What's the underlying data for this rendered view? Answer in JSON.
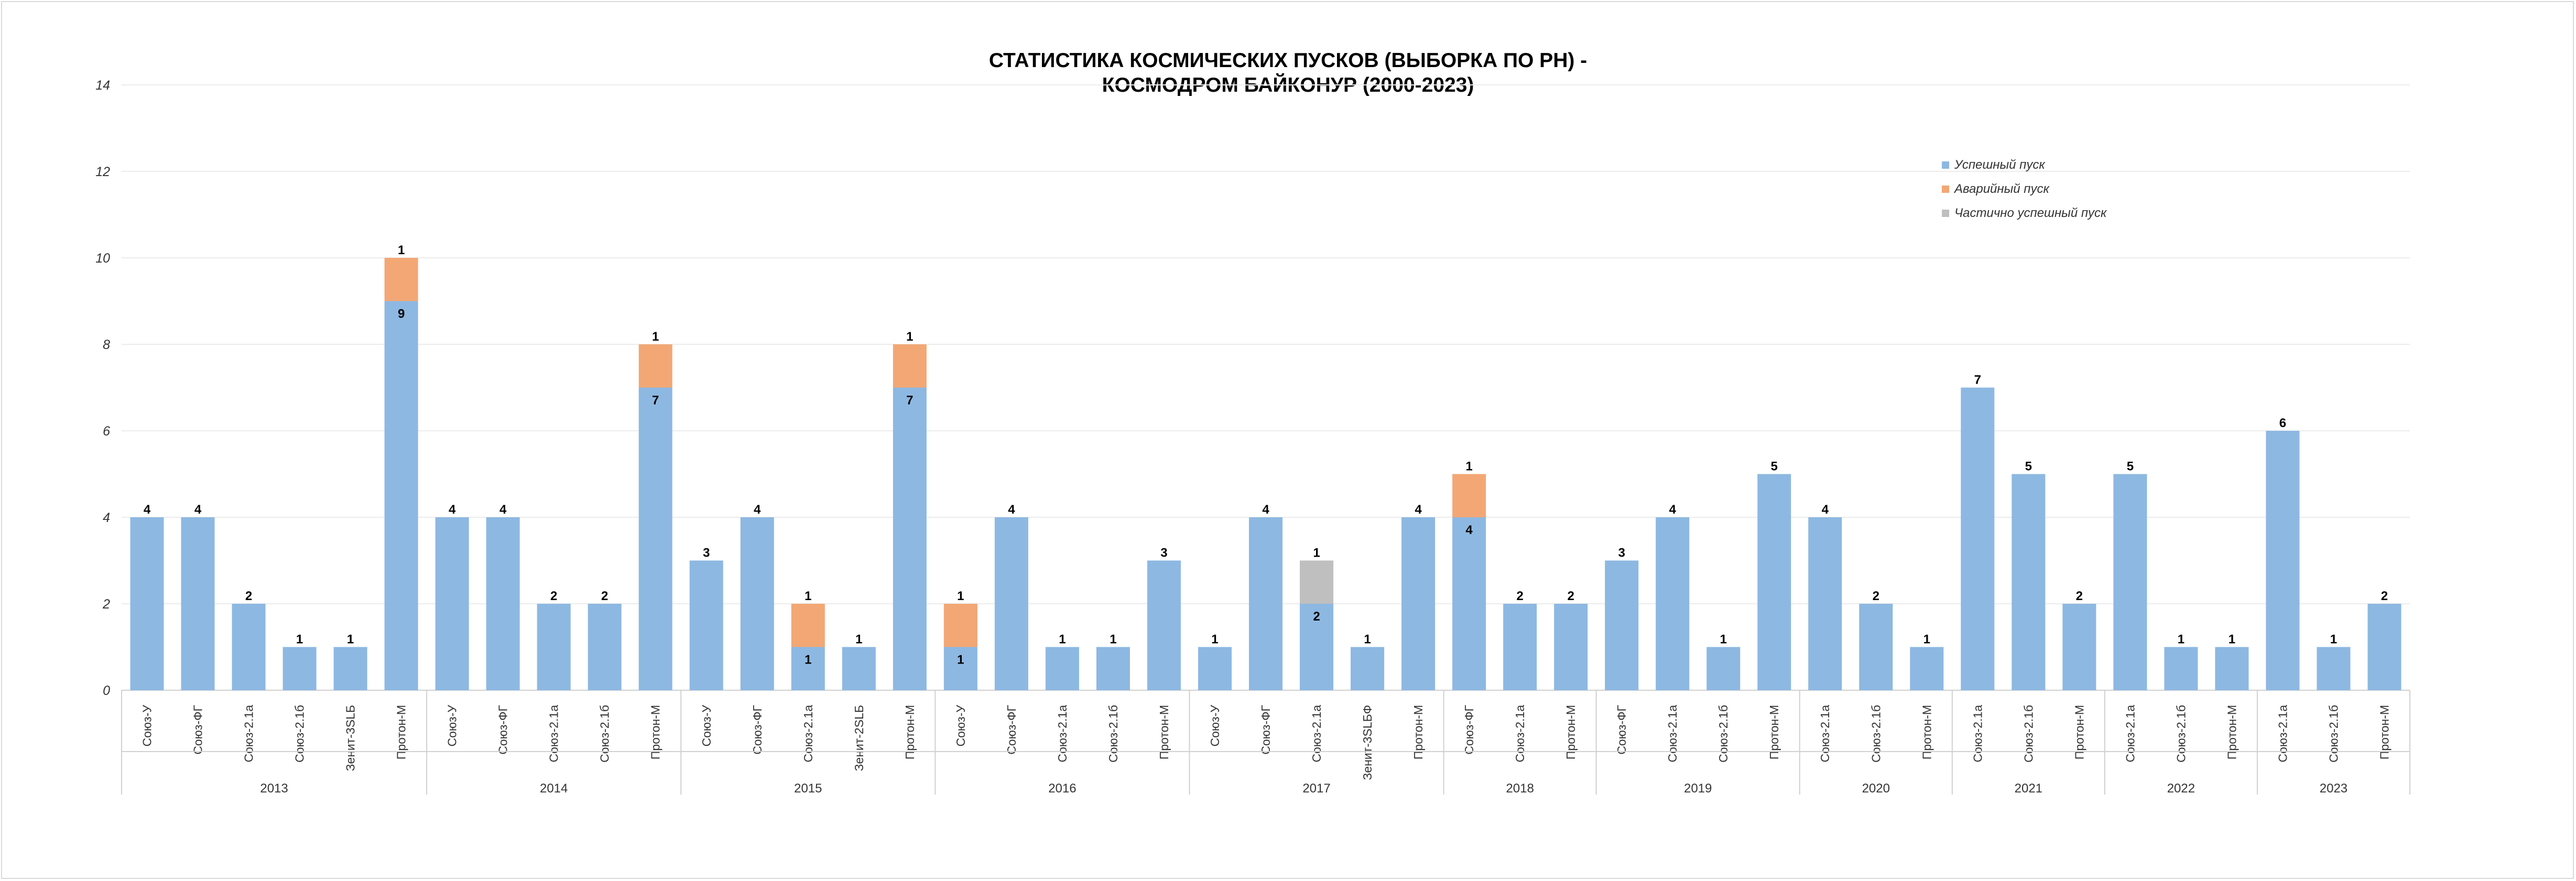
{
  "chart_data": {
    "type": "bar",
    "stacked": true,
    "title_lines": [
      "СТАТИСТИКА КОСМИЧЕСКИХ ПУСКОВ (ВЫБОРКА ПО РН) -",
      "КОСМОДРОМ БАЙКОНУР (2000-2023)"
    ],
    "ylim": [
      0,
      14
    ],
    "yticks": [
      0,
      2,
      4,
      6,
      8,
      10,
      12,
      14
    ],
    "grid": true,
    "legend_position": "top-right",
    "series": [
      {
        "name": "Успешный пуск",
        "color": "#8DB8E2"
      },
      {
        "name": "Аварийный пуск",
        "color": "#F3A775"
      },
      {
        "name": "Частично успешный пуск",
        "color": "#BFBFBF"
      }
    ],
    "groups": [
      {
        "year": "2013",
        "bars": [
          {
            "rocket": "Союз-У",
            "values": [
              4,
              0,
              0
            ]
          },
          {
            "rocket": "Союз-ФГ",
            "values": [
              4,
              0,
              0
            ]
          },
          {
            "rocket": "Союз-2.1а",
            "values": [
              2,
              0,
              0
            ]
          },
          {
            "rocket": "Союз-2.1б",
            "values": [
              1,
              0,
              0
            ]
          },
          {
            "rocket": "Зенит-3SLБ",
            "values": [
              1,
              0,
              0
            ]
          },
          {
            "rocket": "Протон-М",
            "values": [
              9,
              1,
              0
            ]
          }
        ]
      },
      {
        "year": "2014",
        "bars": [
          {
            "rocket": "Союз-У",
            "values": [
              4,
              0,
              0
            ]
          },
          {
            "rocket": "Союз-ФГ",
            "values": [
              4,
              0,
              0
            ]
          },
          {
            "rocket": "Союз-2.1а",
            "values": [
              2,
              0,
              0
            ]
          },
          {
            "rocket": "Союз-2.1б",
            "values": [
              2,
              0,
              0
            ]
          },
          {
            "rocket": "Протон-М",
            "values": [
              7,
              1,
              0
            ]
          }
        ]
      },
      {
        "year": "2015",
        "bars": [
          {
            "rocket": "Союз-У",
            "values": [
              3,
              0,
              0
            ]
          },
          {
            "rocket": "Союз-ФГ",
            "values": [
              4,
              0,
              0
            ]
          },
          {
            "rocket": "Союз-2.1а",
            "values": [
              1,
              1,
              0
            ]
          },
          {
            "rocket": "Зенит-2SLБ",
            "values": [
              1,
              0,
              0
            ]
          },
          {
            "rocket": "Протон-М",
            "values": [
              7,
              1,
              0
            ]
          }
        ]
      },
      {
        "year": "2016",
        "bars": [
          {
            "rocket": "Союз-У",
            "values": [
              1,
              1,
              0
            ]
          },
          {
            "rocket": "Союз-ФГ",
            "values": [
              4,
              0,
              0
            ]
          },
          {
            "rocket": "Союз-2.1а",
            "values": [
              1,
              0,
              0
            ]
          },
          {
            "rocket": "Союз-2.1б",
            "values": [
              1,
              0,
              0
            ]
          },
          {
            "rocket": "Протон-М",
            "values": [
              3,
              0,
              0
            ]
          }
        ]
      },
      {
        "year": "2017",
        "bars": [
          {
            "rocket": "Союз-У",
            "values": [
              1,
              0,
              0
            ]
          },
          {
            "rocket": "Союз-ФГ",
            "values": [
              4,
              0,
              0
            ]
          },
          {
            "rocket": "Союз-2.1а",
            "values": [
              2,
              0,
              1
            ]
          },
          {
            "rocket": "Зенит-3SLБФ",
            "values": [
              1,
              0,
              0
            ]
          },
          {
            "rocket": "Протон-М",
            "values": [
              4,
              0,
              0
            ]
          }
        ]
      },
      {
        "year": "2018",
        "bars": [
          {
            "rocket": "Союз-ФГ",
            "values": [
              4,
              1,
              0
            ]
          },
          {
            "rocket": "Союз-2.1а",
            "values": [
              2,
              0,
              0
            ]
          },
          {
            "rocket": "Протон-М",
            "values": [
              2,
              0,
              0
            ]
          }
        ]
      },
      {
        "year": "2019",
        "bars": [
          {
            "rocket": "Союз-ФГ",
            "values": [
              3,
              0,
              0
            ]
          },
          {
            "rocket": "Союз-2.1а",
            "values": [
              4,
              0,
              0
            ]
          },
          {
            "rocket": "Союз-2.1б",
            "values": [
              1,
              0,
              0
            ]
          },
          {
            "rocket": "Протон-М",
            "values": [
              5,
              0,
              0
            ]
          }
        ]
      },
      {
        "year": "2020",
        "bars": [
          {
            "rocket": "Союз-2.1а",
            "values": [
              4,
              0,
              0
            ]
          },
          {
            "rocket": "Союз-2.1б",
            "values": [
              2,
              0,
              0
            ]
          },
          {
            "rocket": "Протон-М",
            "values": [
              1,
              0,
              0
            ]
          }
        ]
      },
      {
        "year": "2021",
        "bars": [
          {
            "rocket": "Союз-2.1а",
            "values": [
              7,
              0,
              0
            ]
          },
          {
            "rocket": "Союз-2.1б",
            "values": [
              5,
              0,
              0
            ]
          },
          {
            "rocket": "Протон-М",
            "values": [
              2,
              0,
              0
            ]
          }
        ]
      },
      {
        "year": "2022",
        "bars": [
          {
            "rocket": "Союз-2.1а",
            "values": [
              5,
              0,
              0
            ]
          },
          {
            "rocket": "Союз-2.1б",
            "values": [
              1,
              0,
              0
            ]
          },
          {
            "rocket": "Протон-М",
            "values": [
              1,
              0,
              0
            ]
          }
        ]
      },
      {
        "year": "2023",
        "bars": [
          {
            "rocket": "Союз-2.1а",
            "values": [
              6,
              0,
              0
            ]
          },
          {
            "rocket": "Союз-2.1б",
            "values": [
              1,
              0,
              0
            ]
          },
          {
            "rocket": "Протон-М",
            "values": [
              2,
              0,
              0
            ]
          }
        ]
      }
    ]
  }
}
